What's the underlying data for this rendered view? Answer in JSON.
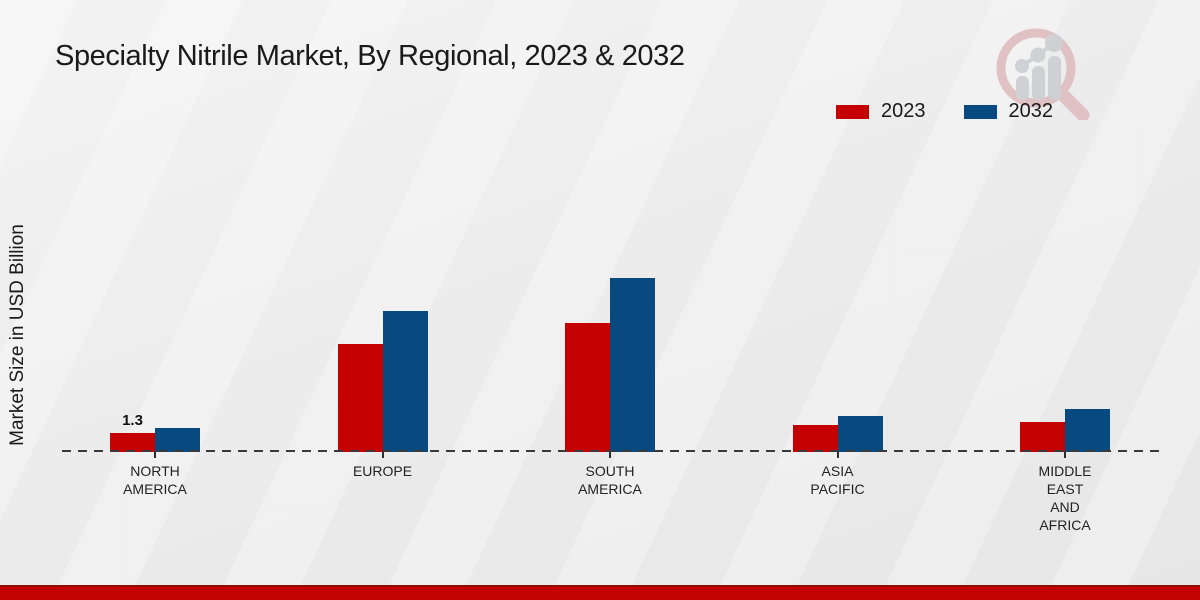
{
  "page": {
    "title": "Specialty Nitrile Market, By Regional, 2023 & 2032",
    "ylabel": "Market Size in USD Billion"
  },
  "legend": {
    "items": [
      {
        "label": "2023",
        "color": "#c40201"
      },
      {
        "label": "2032",
        "color": "#084a80"
      }
    ]
  },
  "chart_data": {
    "type": "bar",
    "title": "Specialty Nitrile Market, By Regional, 2023 & 2032",
    "xlabel": "",
    "ylabel": "Market Size in USD Billion",
    "categories": [
      "NORTH AMERICA",
      "EUROPE",
      "SOUTH AMERICA",
      "ASIA PACIFIC",
      "MIDDLE EAST AND AFRICA"
    ],
    "series": [
      {
        "name": "2023",
        "color": "#c40201",
        "values": [
          1.3,
          7.3,
          8.7,
          1.8,
          2.0
        ]
      },
      {
        "name": "2032",
        "color": "#084a80",
        "values": [
          1.6,
          9.5,
          11.7,
          2.4,
          2.9
        ]
      }
    ],
    "data_labels": [
      {
        "category_index": 0,
        "series_index": 0,
        "text": "1.3"
      }
    ],
    "ylim": [
      0,
      13
    ],
    "grid": false,
    "legend_position": "top-right",
    "baseline_style": "dashed"
  },
  "watermark": {
    "name": "market-research-magnifier-logo"
  },
  "footer": {
    "strip_color": "#c20300"
  }
}
